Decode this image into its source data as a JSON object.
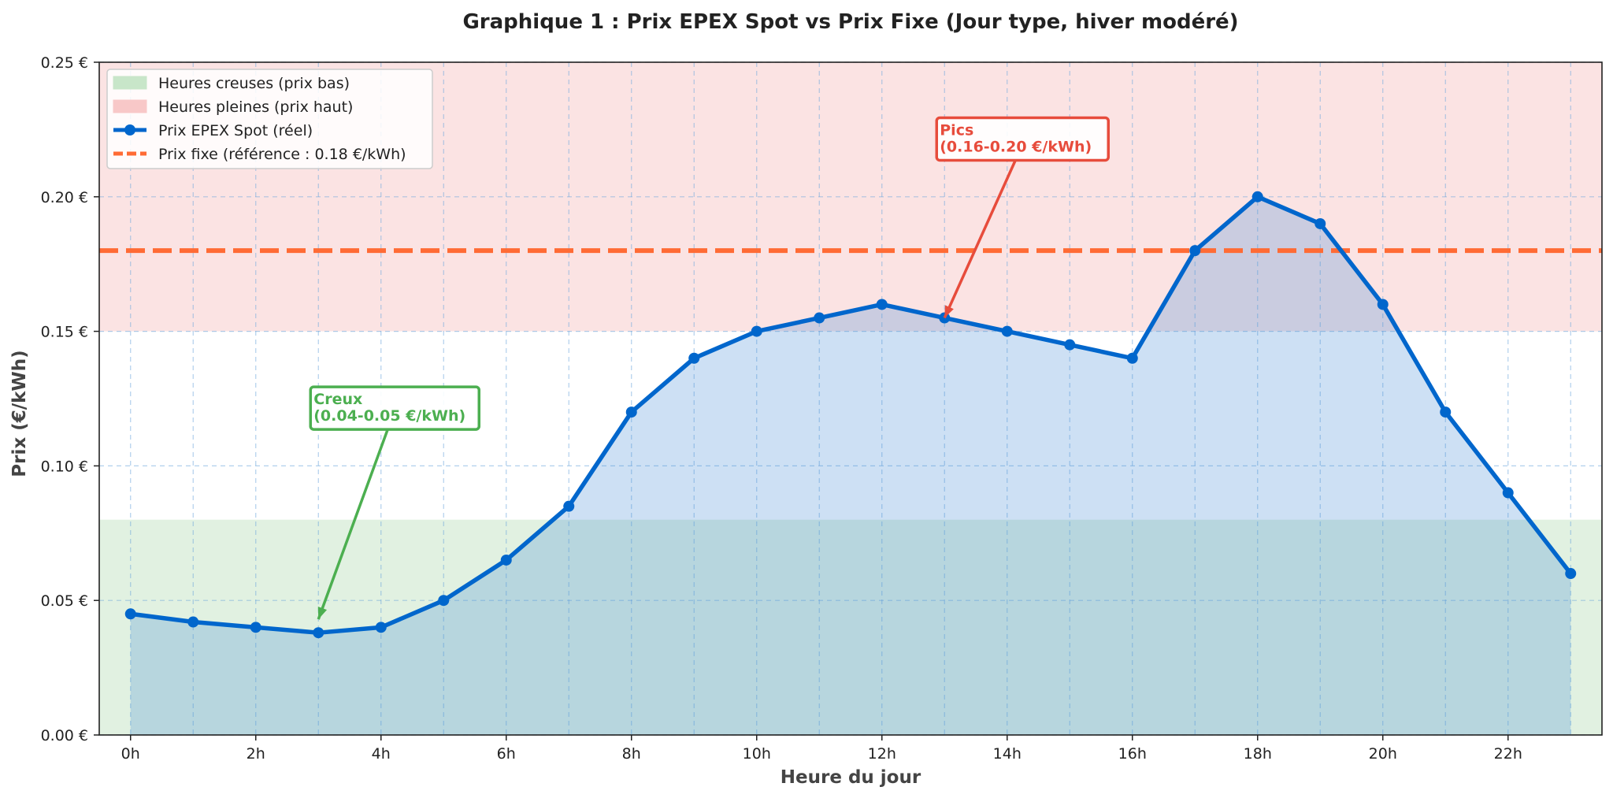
{
  "chart_data": {
    "type": "line",
    "title": "Graphique 1 : Prix EPEX Spot vs Prix Fixe (Jour type, hiver modéré)",
    "xlabel": "Heure du jour",
    "ylabel": "Prix (€/kWh)",
    "x": [
      0,
      1,
      2,
      3,
      4,
      5,
      6,
      7,
      8,
      9,
      10,
      11,
      12,
      13,
      14,
      15,
      16,
      17,
      18,
      19,
      20,
      21,
      22,
      23
    ],
    "x_ticks": [
      0,
      2,
      4,
      6,
      8,
      10,
      12,
      14,
      16,
      18,
      20,
      22
    ],
    "x_tick_labels": [
      "0h",
      "2h",
      "4h",
      "6h",
      "8h",
      "10h",
      "12h",
      "14h",
      "16h",
      "18h",
      "20h",
      "22h"
    ],
    "xlim": [
      -0.5,
      23.5
    ],
    "y_ticks": [
      0,
      0.05,
      0.1,
      0.15,
      0.2,
      0.25
    ],
    "y_tick_labels": [
      "0.00 €",
      "0.05 €",
      "0.10 €",
      "0.15 €",
      "0.20 €",
      "0.25 €"
    ],
    "ylim": [
      0,
      0.25
    ],
    "grid": true,
    "legend_position": "top-left",
    "series": [
      {
        "name": "Prix EPEX Spot (réel)",
        "color": "#0066cc",
        "values": [
          0.045,
          0.042,
          0.04,
          0.038,
          0.04,
          0.05,
          0.065,
          0.085,
          0.12,
          0.14,
          0.15,
          0.155,
          0.16,
          0.155,
          0.15,
          0.145,
          0.14,
          0.18,
          0.2,
          0.19,
          0.16,
          0.12,
          0.09,
          0.06
        ]
      }
    ],
    "reference_line": {
      "name": "Prix fixe (référence : 0.18 €/kWh)",
      "value": 0.18,
      "color": "#ff6b35"
    },
    "bands": [
      {
        "name": "Heures creuses (prix bas)",
        "from": 0,
        "to": 0.08,
        "color": "#c8e6c9"
      },
      {
        "name": "Heures pleines (prix haut)",
        "from": 0.15,
        "to": 0.25,
        "color": "#f8c8c8"
      }
    ],
    "annotations": [
      {
        "lines": [
          "Creux",
          "(0.04-0.05 €/kWh)"
        ],
        "x": 3,
        "y": 0.12,
        "target_x": 3,
        "target_y": 0.043,
        "color": "#4caf50"
      },
      {
        "lines": [
          "Pics",
          "(0.16-0.20 €/kWh)"
        ],
        "x": 13,
        "y": 0.22,
        "target_x": 13,
        "target_y": 0.155,
        "color": "#e74c3c"
      }
    ]
  }
}
